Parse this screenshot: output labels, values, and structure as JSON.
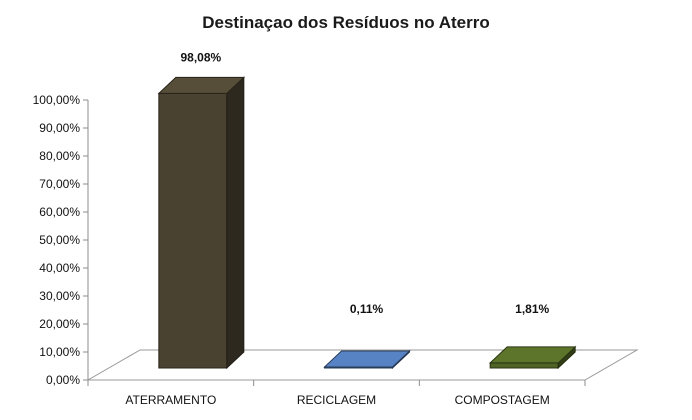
{
  "chart_data": {
    "type": "bar",
    "title": "Destinaçao dos Resíduos no Aterro",
    "categories": [
      "ATERRAMENTO",
      "RECICLAGEM",
      "COMPOSTAGEM"
    ],
    "values": [
      98.08,
      0.11,
      1.81
    ],
    "value_labels": [
      "98,08%",
      "0,11%",
      "1,81%"
    ],
    "colors": [
      "#4a4230",
      "#4a6ea6",
      "#4f6324"
    ],
    "ylim": [
      0,
      100
    ],
    "ytick_values": [
      0,
      10,
      20,
      30,
      40,
      50,
      60,
      70,
      80,
      90,
      100
    ],
    "ytick_labels": [
      "0,00%",
      "10,00%",
      "20,00%",
      "30,00%",
      "40,00%",
      "50,00%",
      "60,00%",
      "70,00%",
      "80,00%",
      "90,00%",
      "100,00%"
    ],
    "xlabel": "",
    "ylabel": "",
    "grid": false,
    "style": "3d-column"
  }
}
